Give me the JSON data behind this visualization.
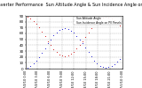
{
  "title": "Solar PV/Inverter Performance  Sun Altitude Angle & Sun Incidence Angle on PV Panels",
  "title_fontsize": 3.5,
  "background_color": "#ffffff",
  "grid_color": "#aaaaaa",
  "legend_labels": [
    "Sun Altitude Angle",
    "Sun Incidence Angle on PV Panels"
  ],
  "blue_color": "#0000cc",
  "red_color": "#cc0000",
  "xlim": [
    0,
    100
  ],
  "ylim": [
    0,
    90
  ],
  "ylabel_fontsize": 3.0,
  "xlabel_fontsize": 2.5,
  "marker_size": 1.2,
  "blue_x": [
    2,
    5,
    8,
    11,
    14,
    17,
    20,
    23,
    26,
    29,
    32,
    35,
    38,
    41,
    44,
    47,
    50,
    53,
    56,
    59,
    62,
    65,
    68,
    71,
    74,
    77,
    80,
    83,
    86,
    89,
    92,
    95,
    98
  ],
  "blue_y": [
    2,
    5,
    9,
    14,
    20,
    27,
    35,
    43,
    50,
    57,
    62,
    66,
    68,
    69,
    68,
    65,
    61,
    56,
    50,
    43,
    36,
    28,
    21,
    14,
    9,
    5,
    3,
    2,
    3,
    5,
    8,
    12,
    16
  ],
  "red_x": [
    2,
    5,
    8,
    11,
    14,
    17,
    20,
    23,
    26,
    29,
    32,
    35,
    38,
    41,
    44,
    47,
    50,
    53,
    56,
    59,
    62,
    65,
    68,
    71,
    74,
    77,
    80,
    83,
    86,
    89,
    92,
    95,
    98
  ],
  "red_y": [
    88,
    85,
    81,
    76,
    70,
    63,
    55,
    47,
    40,
    33,
    28,
    24,
    22,
    21,
    22,
    25,
    29,
    34,
    40,
    47,
    54,
    62,
    69,
    76,
    81,
    85,
    87,
    88,
    87,
    85,
    82,
    78,
    74
  ],
  "xtick_labels": [
    "7/4/10 0:00",
    "7/4/10 3:00",
    "7/4/10 6:00",
    "7/4/10 9:00",
    "7/4/10 12:00",
    "7/4/10 15:00",
    "7/4/10 18:00",
    "7/4/10 21:00",
    "7/5/10 0:00"
  ],
  "xtick_positions": [
    0,
    12.5,
    25,
    37.5,
    50,
    62.5,
    75,
    87.5,
    100
  ],
  "ytick_labels": [
    "0",
    "10",
    "20",
    "30",
    "40",
    "50",
    "60",
    "70",
    "80",
    "90"
  ],
  "ytick_positions": [
    0,
    10,
    20,
    30,
    40,
    50,
    60,
    70,
    80,
    90
  ]
}
